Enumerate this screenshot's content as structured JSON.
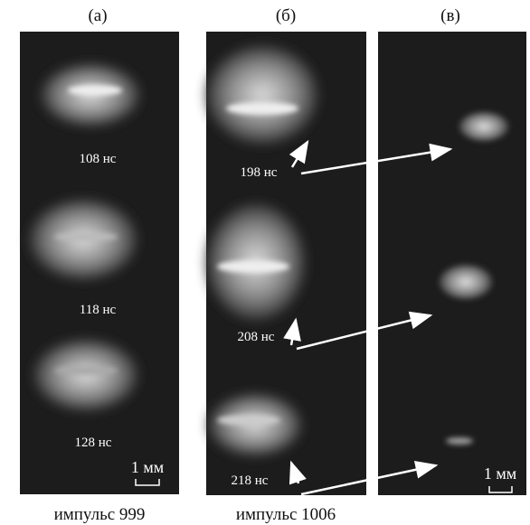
{
  "panels": [
    {
      "label": "(а)",
      "times": [
        "108 нс",
        "118 нс",
        "128 нс"
      ],
      "scale": "1 мм",
      "caption": "импульс 999"
    },
    {
      "label": "(б)",
      "times": [
        "198 нс",
        "208 нс",
        "218 нс"
      ],
      "caption": "импульс 1006"
    },
    {
      "label": "(в)",
      "scale": "1 мм"
    }
  ]
}
